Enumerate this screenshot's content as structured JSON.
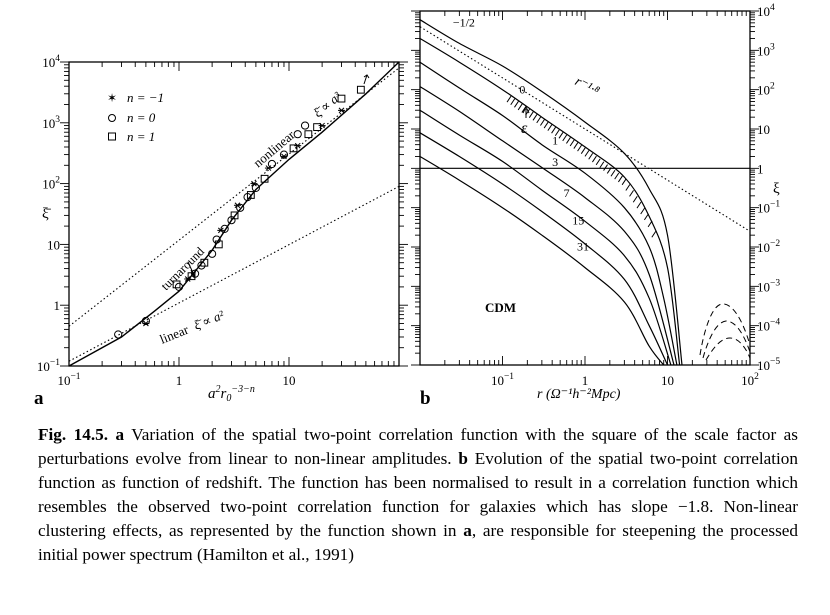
{
  "panel_a": {
    "label": "a",
    "xlabel_base": "a",
    "xlabel_sup1": "2",
    "xlabel_mid": "r",
    "xlabel_sub": "0",
    "xlabel_sup2": "−3−n",
    "ylabel": "ξ̄",
    "x_ticks": [
      {
        "v": 0.1,
        "base": "10",
        "exp": "−1"
      },
      {
        "v": 1,
        "base": "1",
        "exp": ""
      },
      {
        "v": 10,
        "base": "10",
        "exp": ""
      }
    ],
    "y_ticks": [
      {
        "v": 0.1,
        "base": "10",
        "exp": "−1"
      },
      {
        "v": 1,
        "base": "1",
        "exp": ""
      },
      {
        "v": 10,
        "base": "10",
        "exp": ""
      },
      {
        "v": 100,
        "base": "10",
        "exp": "2"
      },
      {
        "v": 1000,
        "base": "10",
        "exp": "3"
      },
      {
        "v": 10000,
        "base": "10",
        "exp": "4"
      }
    ],
    "legend": [
      {
        "marker": "star",
        "text": "n = −1"
      },
      {
        "marker": "circle",
        "text": "n = 0"
      },
      {
        "marker": "square",
        "text": "n = 1"
      }
    ],
    "annotations": {
      "nonlinear": "nonlinear",
      "nonlinear_eq": "ξ̄ ∝ a³",
      "turnaround": "turnaround",
      "linear": "linear",
      "linear_eq": "ξ̄ ∝ a²"
    }
  },
  "panel_b": {
    "label": "b",
    "xlabel": "r  (Ω⁻¹h⁻²Mpc)",
    "ylabel": "ξ",
    "model_label": "CDM",
    "x_ticks": [
      {
        "v": 0.1,
        "base": "10",
        "exp": "−1"
      },
      {
        "v": 1,
        "base": "1",
        "exp": ""
      },
      {
        "v": 10,
        "base": "10",
        "exp": ""
      },
      {
        "v": 100,
        "base": "10",
        "exp": "2"
      }
    ],
    "y_ticks": [
      {
        "v": 1e-05,
        "base": "10",
        "exp": "−5"
      },
      {
        "v": 0.0001,
        "base": "10",
        "exp": "−4"
      },
      {
        "v": 0.001,
        "base": "10",
        "exp": "−3"
      },
      {
        "v": 0.01,
        "base": "10",
        "exp": "−2"
      },
      {
        "v": 0.1,
        "base": "10",
        "exp": "−1"
      },
      {
        "v": 1,
        "base": "1",
        "exp": ""
      },
      {
        "v": 10,
        "base": "10",
        "exp": ""
      },
      {
        "v": 100,
        "base": "10",
        "exp": "2"
      },
      {
        "v": 1000,
        "base": "10",
        "exp": "3"
      },
      {
        "v": 10000,
        "base": "10",
        "exp": "4"
      }
    ],
    "curve_labels": [
      "−1/2",
      "0",
      "1",
      "3",
      "7",
      "15",
      "31"
    ],
    "slope_label": "r⁻¹·⁸",
    "epsilon_label": "ε"
  },
  "chart_data": [
    {
      "type": "scatter",
      "panel": "a",
      "xlabel": "a²r₀⁻³⁻ⁿ",
      "ylabel": "ξ̄",
      "x_scale": "log",
      "y_scale": "log",
      "xlim": [
        0.1,
        100
      ],
      "ylim": [
        0.1,
        10000
      ],
      "series": [
        {
          "name": "n = −1",
          "marker": "star",
          "points": [
            [
              0.5,
              0.5
            ],
            [
              1.2,
              2.7
            ],
            [
              2.4,
              17
            ],
            [
              3.4,
              44
            ],
            [
              4.8,
              100
            ],
            [
              6.5,
              180
            ],
            [
              9,
              280
            ],
            [
              12,
              420
            ],
            [
              20,
              900
            ],
            [
              30,
              1600
            ]
          ]
        },
        {
          "name": "n = 0",
          "marker": "circle",
          "points": [
            [
              0.28,
              0.33
            ],
            [
              0.5,
              0.55
            ],
            [
              1,
              2
            ],
            [
              1.4,
              3.3
            ],
            [
              1.6,
              4.5
            ],
            [
              2,
              7
            ],
            [
              2.2,
              12
            ],
            [
              2.6,
              18
            ],
            [
              3,
              25
            ],
            [
              3.6,
              40
            ],
            [
              4.2,
              60
            ],
            [
              5,
              85
            ],
            [
              7,
              210
            ],
            [
              9,
              300
            ],
            [
              12,
              650
            ],
            [
              14,
              900
            ]
          ]
        },
        {
          "name": "n = 1",
          "marker": "square",
          "points": [
            [
              0.95,
              2.2
            ],
            [
              1.3,
              3
            ],
            [
              1.7,
              5
            ],
            [
              2.3,
              10
            ],
            [
              3.2,
              30
            ],
            [
              4.5,
              65
            ],
            [
              6,
              120
            ],
            [
              11,
              380
            ],
            [
              15,
              650
            ],
            [
              18,
              850
            ],
            [
              30,
              2500
            ],
            [
              45,
              3500
            ]
          ]
        }
      ],
      "lines": [
        {
          "name": "fit",
          "style": "solid",
          "points": [
            [
              0.1,
              0.1
            ],
            [
              0.3,
              0.3
            ],
            [
              0.6,
              0.8
            ],
            [
              1,
              1.7
            ],
            [
              2,
              8
            ],
            [
              3,
              25
            ],
            [
              5,
              80
            ],
            [
              10,
              250
            ],
            [
              20,
              700
            ],
            [
              50,
              3000
            ],
            [
              100,
              10000
            ]
          ]
        },
        {
          "name": "linear",
          "style": "dotted",
          "points": [
            [
              0.1,
              0.12
            ],
            [
              100,
              90
            ]
          ]
        },
        {
          "name": "nonlinear",
          "style": "dotted",
          "points": [
            [
              0.1,
              0.45
            ],
            [
              100,
              8000
            ]
          ]
        }
      ]
    },
    {
      "type": "line",
      "panel": "b",
      "title": "CDM",
      "xlabel": "r (Ω⁻¹h⁻²Mpc)",
      "ylabel": "ξ",
      "x_scale": "log",
      "y_scale": "log",
      "xlim": [
        0.01,
        100
      ],
      "ylim": [
        1e-05,
        10000
      ],
      "series": [
        {
          "name": "−1/2",
          "points": [
            [
              0.01,
              6000
            ],
            [
              0.03,
              1500
            ],
            [
              0.1,
              400
            ],
            [
              0.3,
              90
            ],
            [
              1,
              15
            ],
            [
              3,
              2.4
            ],
            [
              6,
              0.3
            ],
            [
              10,
              0.02
            ],
            [
              15,
              1e-05
            ]
          ]
        },
        {
          "name": "0",
          "points": [
            [
              0.01,
              2000
            ],
            [
              0.03,
              500
            ],
            [
              0.1,
              100
            ],
            [
              0.3,
              20
            ],
            [
              1,
              3.5
            ],
            [
              3,
              0.6
            ],
            [
              6,
              0.06
            ],
            [
              10,
              0.003
            ],
            [
              14,
              1e-05
            ]
          ]
        },
        {
          "name": "1",
          "points": [
            [
              0.01,
              500
            ],
            [
              0.03,
              110
            ],
            [
              0.1,
              22
            ],
            [
              0.3,
              4
            ],
            [
              1,
              0.75
            ],
            [
              3,
              0.1
            ],
            [
              6,
              0.01
            ],
            [
              9,
              0.0005
            ],
            [
              13,
              1e-05
            ]
          ]
        },
        {
          "name": "3",
          "points": [
            [
              0.01,
              120
            ],
            [
              0.03,
              28
            ],
            [
              0.1,
              5
            ],
            [
              0.3,
              1.05
            ],
            [
              1,
              0.18
            ],
            [
              3,
              0.025
            ],
            [
              6,
              0.002
            ],
            [
              12,
              1e-05
            ]
          ]
        },
        {
          "name": "7",
          "points": [
            [
              0.01,
              30
            ],
            [
              0.03,
              7
            ],
            [
              0.1,
              1.5
            ],
            [
              0.3,
              0.28
            ],
            [
              1,
              0.045
            ],
            [
              3,
              0.006
            ],
            [
              6,
              0.0005
            ],
            [
              11,
              1e-05
            ]
          ]
        },
        {
          "name": "15",
          "points": [
            [
              0.01,
              8
            ],
            [
              0.03,
              2
            ],
            [
              0.1,
              0.4
            ],
            [
              0.3,
              0.08
            ],
            [
              1,
              0.012
            ],
            [
              3,
              0.0015
            ],
            [
              6,
              0.0001
            ],
            [
              10,
              1e-05
            ]
          ]
        },
        {
          "name": "31",
          "points": [
            [
              0.01,
              2
            ],
            [
              0.03,
              0.5
            ],
            [
              0.1,
              0.1
            ],
            [
              0.3,
              0.02
            ],
            [
              1,
              0.003
            ],
            [
              3,
              0.0004
            ],
            [
              6,
              3e-05
            ],
            [
              9,
              1e-05
            ]
          ]
        }
      ],
      "reference_lines": [
        {
          "name": "r⁻¹·⁸",
          "style": "dotted",
          "points": [
            [
              0.01,
              4000
            ],
            [
              100,
              0.025
            ]
          ]
        },
        {
          "name": "ξ = 1",
          "style": "solid",
          "points": [
            [
              0.01,
              1
            ],
            [
              100,
              1
            ]
          ]
        }
      ]
    }
  ],
  "caption": {
    "fig_label": "Fig. 14.5.",
    "a": "a",
    "text1": " Variation of the spatial two-point correlation function with the square of the scale factor as perturbations evolve from linear to non-linear amplitudes. ",
    "b": "b",
    "text2": " Evolution of the spatial two-point correlation function as function of redshift. The function has been normalised to result in a correlation function which resembles the observed two-point correlation function for galaxies which has slope −1.8. Non-linear clustering effects, as represented by the function shown in ",
    "a2": "a",
    "text3": ", are responsible for steepening the processed initial power spectrum (Hamilton et al., 1991)"
  }
}
